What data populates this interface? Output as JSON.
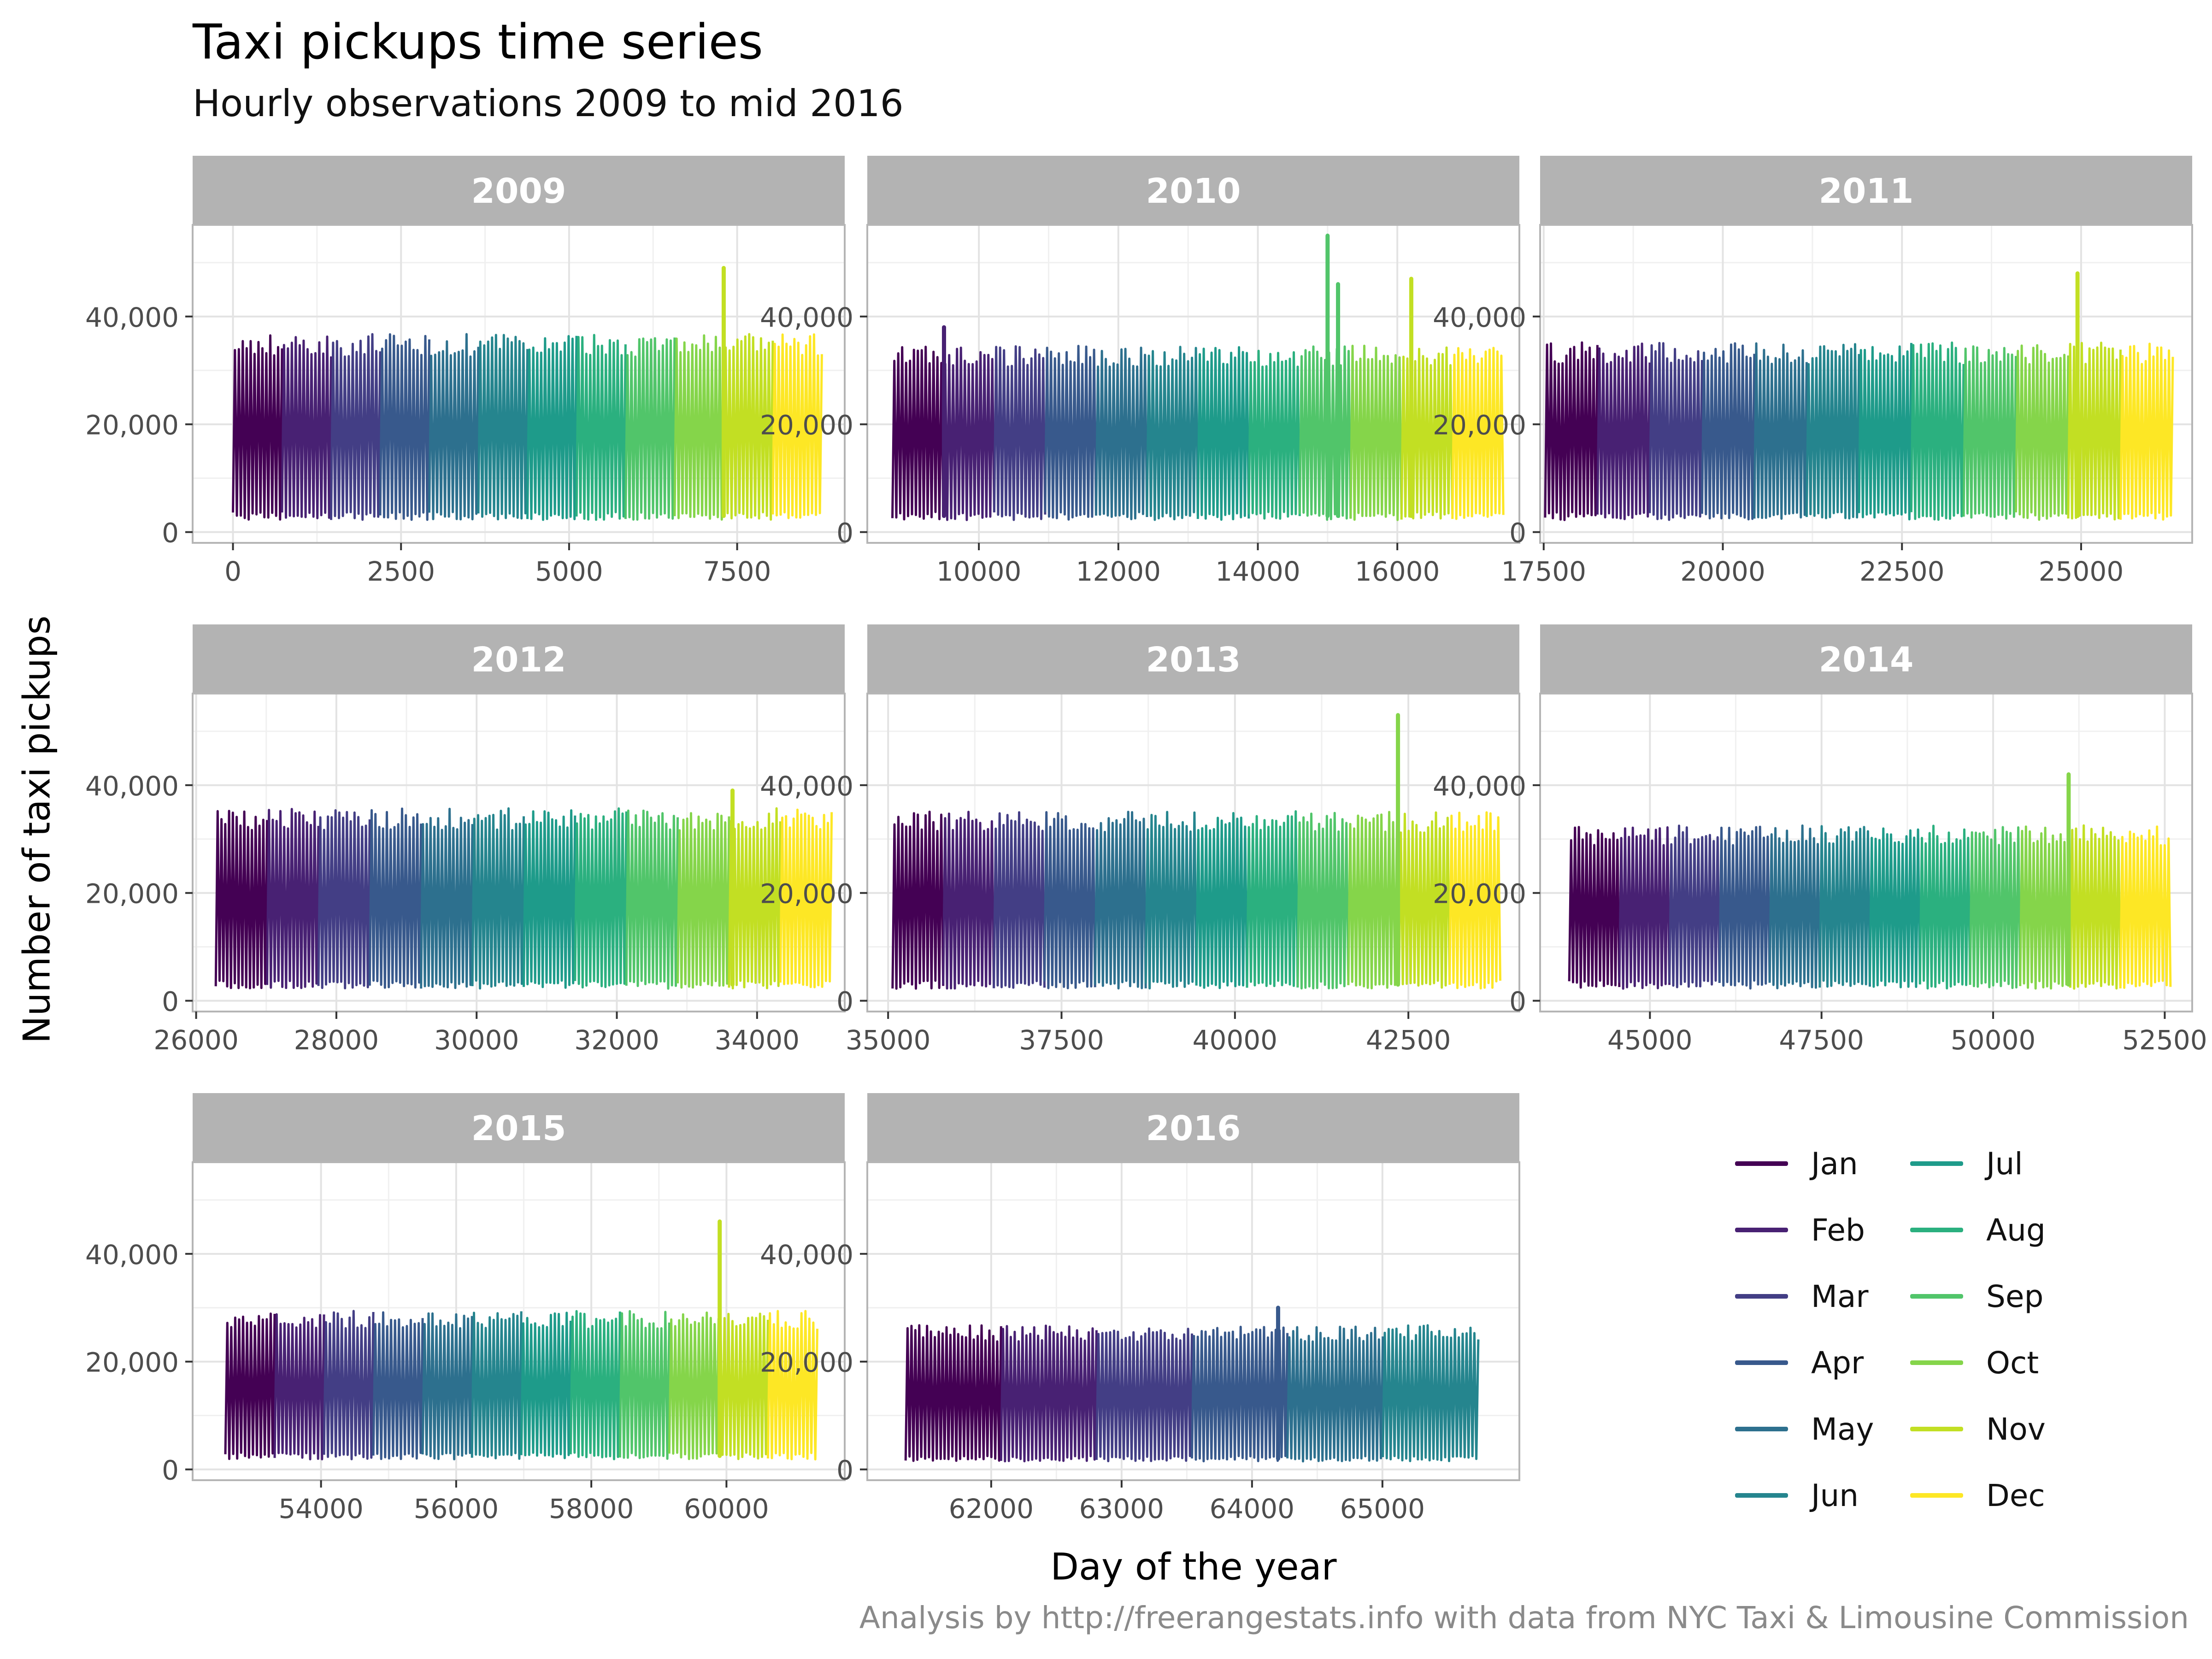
{
  "title": "Taxi pickups time series",
  "subtitle": "Hourly observations 2009 to mid 2016",
  "caption": "Analysis by http://freerangestats.info with data from NYC Taxi & Limousine Commission",
  "chart_data": {
    "type": "line",
    "xlabel": "Day of the year",
    "ylabel": "Number of taxi pickups",
    "y_ticks": [
      0,
      20000,
      40000
    ],
    "y_tick_labels": [
      "0",
      "20,000",
      "40,000"
    ],
    "ylim": [
      -2000,
      57000
    ],
    "grid": true,
    "legend_placement": "bottom-right",
    "legend": [
      {
        "label": "Jan",
        "color": "#440154"
      },
      {
        "label": "Feb",
        "color": "#482173"
      },
      {
        "label": "Mar",
        "color": "#433E85"
      },
      {
        "label": "Apr",
        "color": "#38598C"
      },
      {
        "label": "May",
        "color": "#2D708E"
      },
      {
        "label": "Jun",
        "color": "#25858E"
      },
      {
        "label": "Jul",
        "color": "#1E9B8A"
      },
      {
        "label": "Aug",
        "color": "#2BB07F"
      },
      {
        "label": "Sep",
        "color": "#51C56A"
      },
      {
        "label": "Oct",
        "color": "#85D54A"
      },
      {
        "label": "Nov",
        "color": "#C2DF23"
      },
      {
        "label": "Dec",
        "color": "#FDE725"
      }
    ],
    "panels": [
      {
        "label": "2009",
        "xlim": [
          -600,
          9100
        ],
        "x_ticks": [
          0,
          2500,
          5000,
          7500
        ],
        "x_tick_labels": [
          "0",
          "2500",
          "5000",
          "7500"
        ],
        "months": 12,
        "start": 0,
        "end": 8760,
        "low": 3000,
        "high": 35000,
        "peaks": [
          {
            "x": 7300,
            "y": 49000
          }
        ]
      },
      {
        "label": "2010",
        "xlim": [
          8400,
          17750
        ],
        "x_ticks": [
          10000,
          12000,
          14000,
          16000
        ],
        "x_tick_labels": [
          "10000",
          "12000",
          "14000",
          "16000"
        ],
        "months": 12,
        "start": 8760,
        "end": 17520,
        "low": 3000,
        "high": 33000,
        "peaks": [
          {
            "x": 15000,
            "y": 55000
          },
          {
            "x": 15150,
            "y": 46000
          },
          {
            "x": 16200,
            "y": 47000
          },
          {
            "x": 9500,
            "y": 38000
          }
        ]
      },
      {
        "label": "2011",
        "xlim": [
          17450,
          26550
        ],
        "x_ticks": [
          17500,
          20000,
          22500,
          25000
        ],
        "x_tick_labels": [
          "17500",
          "20000",
          "22500",
          "25000"
        ],
        "months": 12,
        "start": 17520,
        "end": 26280,
        "low": 3000,
        "high": 33500,
        "peaks": [
          {
            "x": 24950,
            "y": 48000
          }
        ]
      },
      {
        "label": "2012",
        "xlim": [
          25950,
          35250
        ],
        "x_ticks": [
          26000,
          28000,
          30000,
          32000,
          34000
        ],
        "x_tick_labels": [
          "26000",
          "28000",
          "30000",
          "32000",
          "34000"
        ],
        "months": 12,
        "start": 26280,
        "end": 35064,
        "low": 3000,
        "high": 34000,
        "peaks": [
          {
            "x": 33650,
            "y": 39000
          }
        ]
      },
      {
        "label": "2013",
        "xlim": [
          34700,
          44100
        ],
        "x_ticks": [
          35000,
          37500,
          40000,
          42500
        ],
        "x_tick_labels": [
          "35000",
          "37500",
          "40000",
          "42500"
        ],
        "months": 12,
        "start": 35064,
        "end": 43824,
        "low": 3000,
        "high": 33500,
        "peaks": [
          {
            "x": 42350,
            "y": 53000
          }
        ]
      },
      {
        "label": "2014",
        "xlim": [
          43400,
          52900
        ],
        "x_ticks": [
          45000,
          47500,
          50000,
          52500
        ],
        "x_tick_labels": [
          "45000",
          "47500",
          "50000",
          "52500"
        ],
        "months": 12,
        "start": 43824,
        "end": 52584,
        "low": 3000,
        "high": 31000,
        "peaks": [
          {
            "x": 51100,
            "y": 42000
          }
        ]
      },
      {
        "label": "2015",
        "xlim": [
          52100,
          61750
        ],
        "x_ticks": [
          54000,
          56000,
          58000,
          60000
        ],
        "x_tick_labels": [
          "54000",
          "56000",
          "58000",
          "60000"
        ],
        "months": 12,
        "start": 52584,
        "end": 61344,
        "low": 2500,
        "high": 28000,
        "peaks": [
          {
            "x": 59900,
            "y": 46000
          }
        ]
      },
      {
        "label": "2016",
        "xlim": [
          61050,
          66050
        ],
        "x_ticks": [
          62000,
          63000,
          64000,
          65000
        ],
        "x_tick_labels": [
          "62000",
          "63000",
          "64000",
          "65000"
        ],
        "months": 6,
        "start": 61344,
        "end": 65735,
        "low": 2000,
        "high": 25500,
        "peaks": [
          {
            "x": 64200,
            "y": 30000
          }
        ]
      }
    ]
  }
}
